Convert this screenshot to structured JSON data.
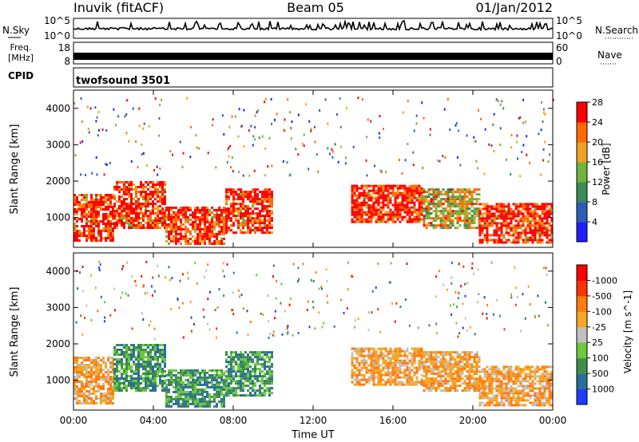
{
  "header": {
    "station": "Inuvik (fitACF)",
    "beam": "Beam 05",
    "date": "01/Jan/2012"
  },
  "noise_panel": {
    "left_label": "N.Sky",
    "right_label": "N.Search",
    "top_tick": "10^5",
    "bottom_tick": "10^0"
  },
  "freq_panel": {
    "left_label_1": "Freq.",
    "left_label_2": "[MHz]",
    "left_tick_top": "18",
    "left_tick_bottom": "8",
    "right_label": "Nave",
    "right_tick_top": "60",
    "right_tick_bottom": "0"
  },
  "cpid_panel": {
    "label": "CPID",
    "value": "twofsound 3501"
  },
  "time_axis": {
    "label": "Time UT",
    "ticks": [
      "00:00",
      "04:00",
      "08:00",
      "12:00",
      "16:00",
      "20:00",
      "00:00"
    ]
  },
  "chart_data": [
    {
      "type": "heatmap",
      "title": "",
      "xlabel": "Time UT",
      "ylabel": "Slant Range [km]",
      "xlim": [
        0,
        24
      ],
      "ylim": [
        180,
        4500
      ],
      "yticks": [
        "1000",
        "2000",
        "3000",
        "4000"
      ],
      "colorbar": {
        "label": "Power [dB]",
        "ticks": [
          "4",
          "8",
          "12",
          "16",
          "20",
          "24",
          "28"
        ],
        "colors": [
          "#1e1eff",
          "#2c5fb3",
          "#3d8a5a",
          "#6fb43c",
          "#f0a020",
          "#ff6a00",
          "#ff0000"
        ]
      },
      "regions": [
        {
          "t0": 0.0,
          "t1": 2.0,
          "r0": 400,
          "r1": 1650,
          "level": "high"
        },
        {
          "t0": 2.0,
          "t1": 4.6,
          "r0": 700,
          "r1": 2000,
          "level": "high"
        },
        {
          "t0": 4.6,
          "t1": 7.6,
          "r0": 250,
          "r1": 1300,
          "level": "high"
        },
        {
          "t0": 7.6,
          "t1": 10.0,
          "r0": 600,
          "r1": 1800,
          "level": "high"
        },
        {
          "t0": 13.9,
          "t1": 17.5,
          "r0": 900,
          "r1": 1900,
          "level": "high"
        },
        {
          "t0": 17.5,
          "t1": 20.3,
          "r0": 700,
          "r1": 1800,
          "level": "mid"
        },
        {
          "t0": 20.3,
          "t1": 24.0,
          "r0": 300,
          "r1": 1400,
          "level": "high"
        }
      ]
    },
    {
      "type": "heatmap",
      "title": "",
      "xlabel": "Time UT",
      "ylabel": "Slant Range [km]",
      "xlim": [
        0,
        24
      ],
      "ylim": [
        180,
        4500
      ],
      "yticks": [
        "1000",
        "2000",
        "3000",
        "4000"
      ],
      "colorbar": {
        "label": "Velocity [m s^-1]",
        "ticks": [
          "1000",
          "500",
          "100",
          "25",
          "-25",
          "-100",
          "-500",
          "-1000"
        ],
        "colors": [
          "#1e3cff",
          "#2a6e9a",
          "#3f8f4a",
          "#6cc83c",
          "#c0c0c0",
          "#f5a623",
          "#ff7a10",
          "#ff3000",
          "#ff0000"
        ]
      },
      "regions": [
        {
          "t0": 0.0,
          "t1": 2.0,
          "r0": 400,
          "r1": 1650,
          "level": "neg"
        },
        {
          "t0": 2.0,
          "t1": 4.6,
          "r0": 700,
          "r1": 2000,
          "level": "pos"
        },
        {
          "t0": 4.6,
          "t1": 7.6,
          "r0": 250,
          "r1": 1300,
          "level": "pos"
        },
        {
          "t0": 7.6,
          "t1": 10.0,
          "r0": 600,
          "r1": 1800,
          "level": "pos"
        },
        {
          "t0": 13.9,
          "t1": 17.5,
          "r0": 900,
          "r1": 1900,
          "level": "neg"
        },
        {
          "t0": 17.5,
          "t1": 20.3,
          "r0": 700,
          "r1": 1800,
          "level": "neg"
        },
        {
          "t0": 20.3,
          "t1": 24.0,
          "r0": 300,
          "r1": 1400,
          "level": "neg"
        }
      ]
    }
  ]
}
